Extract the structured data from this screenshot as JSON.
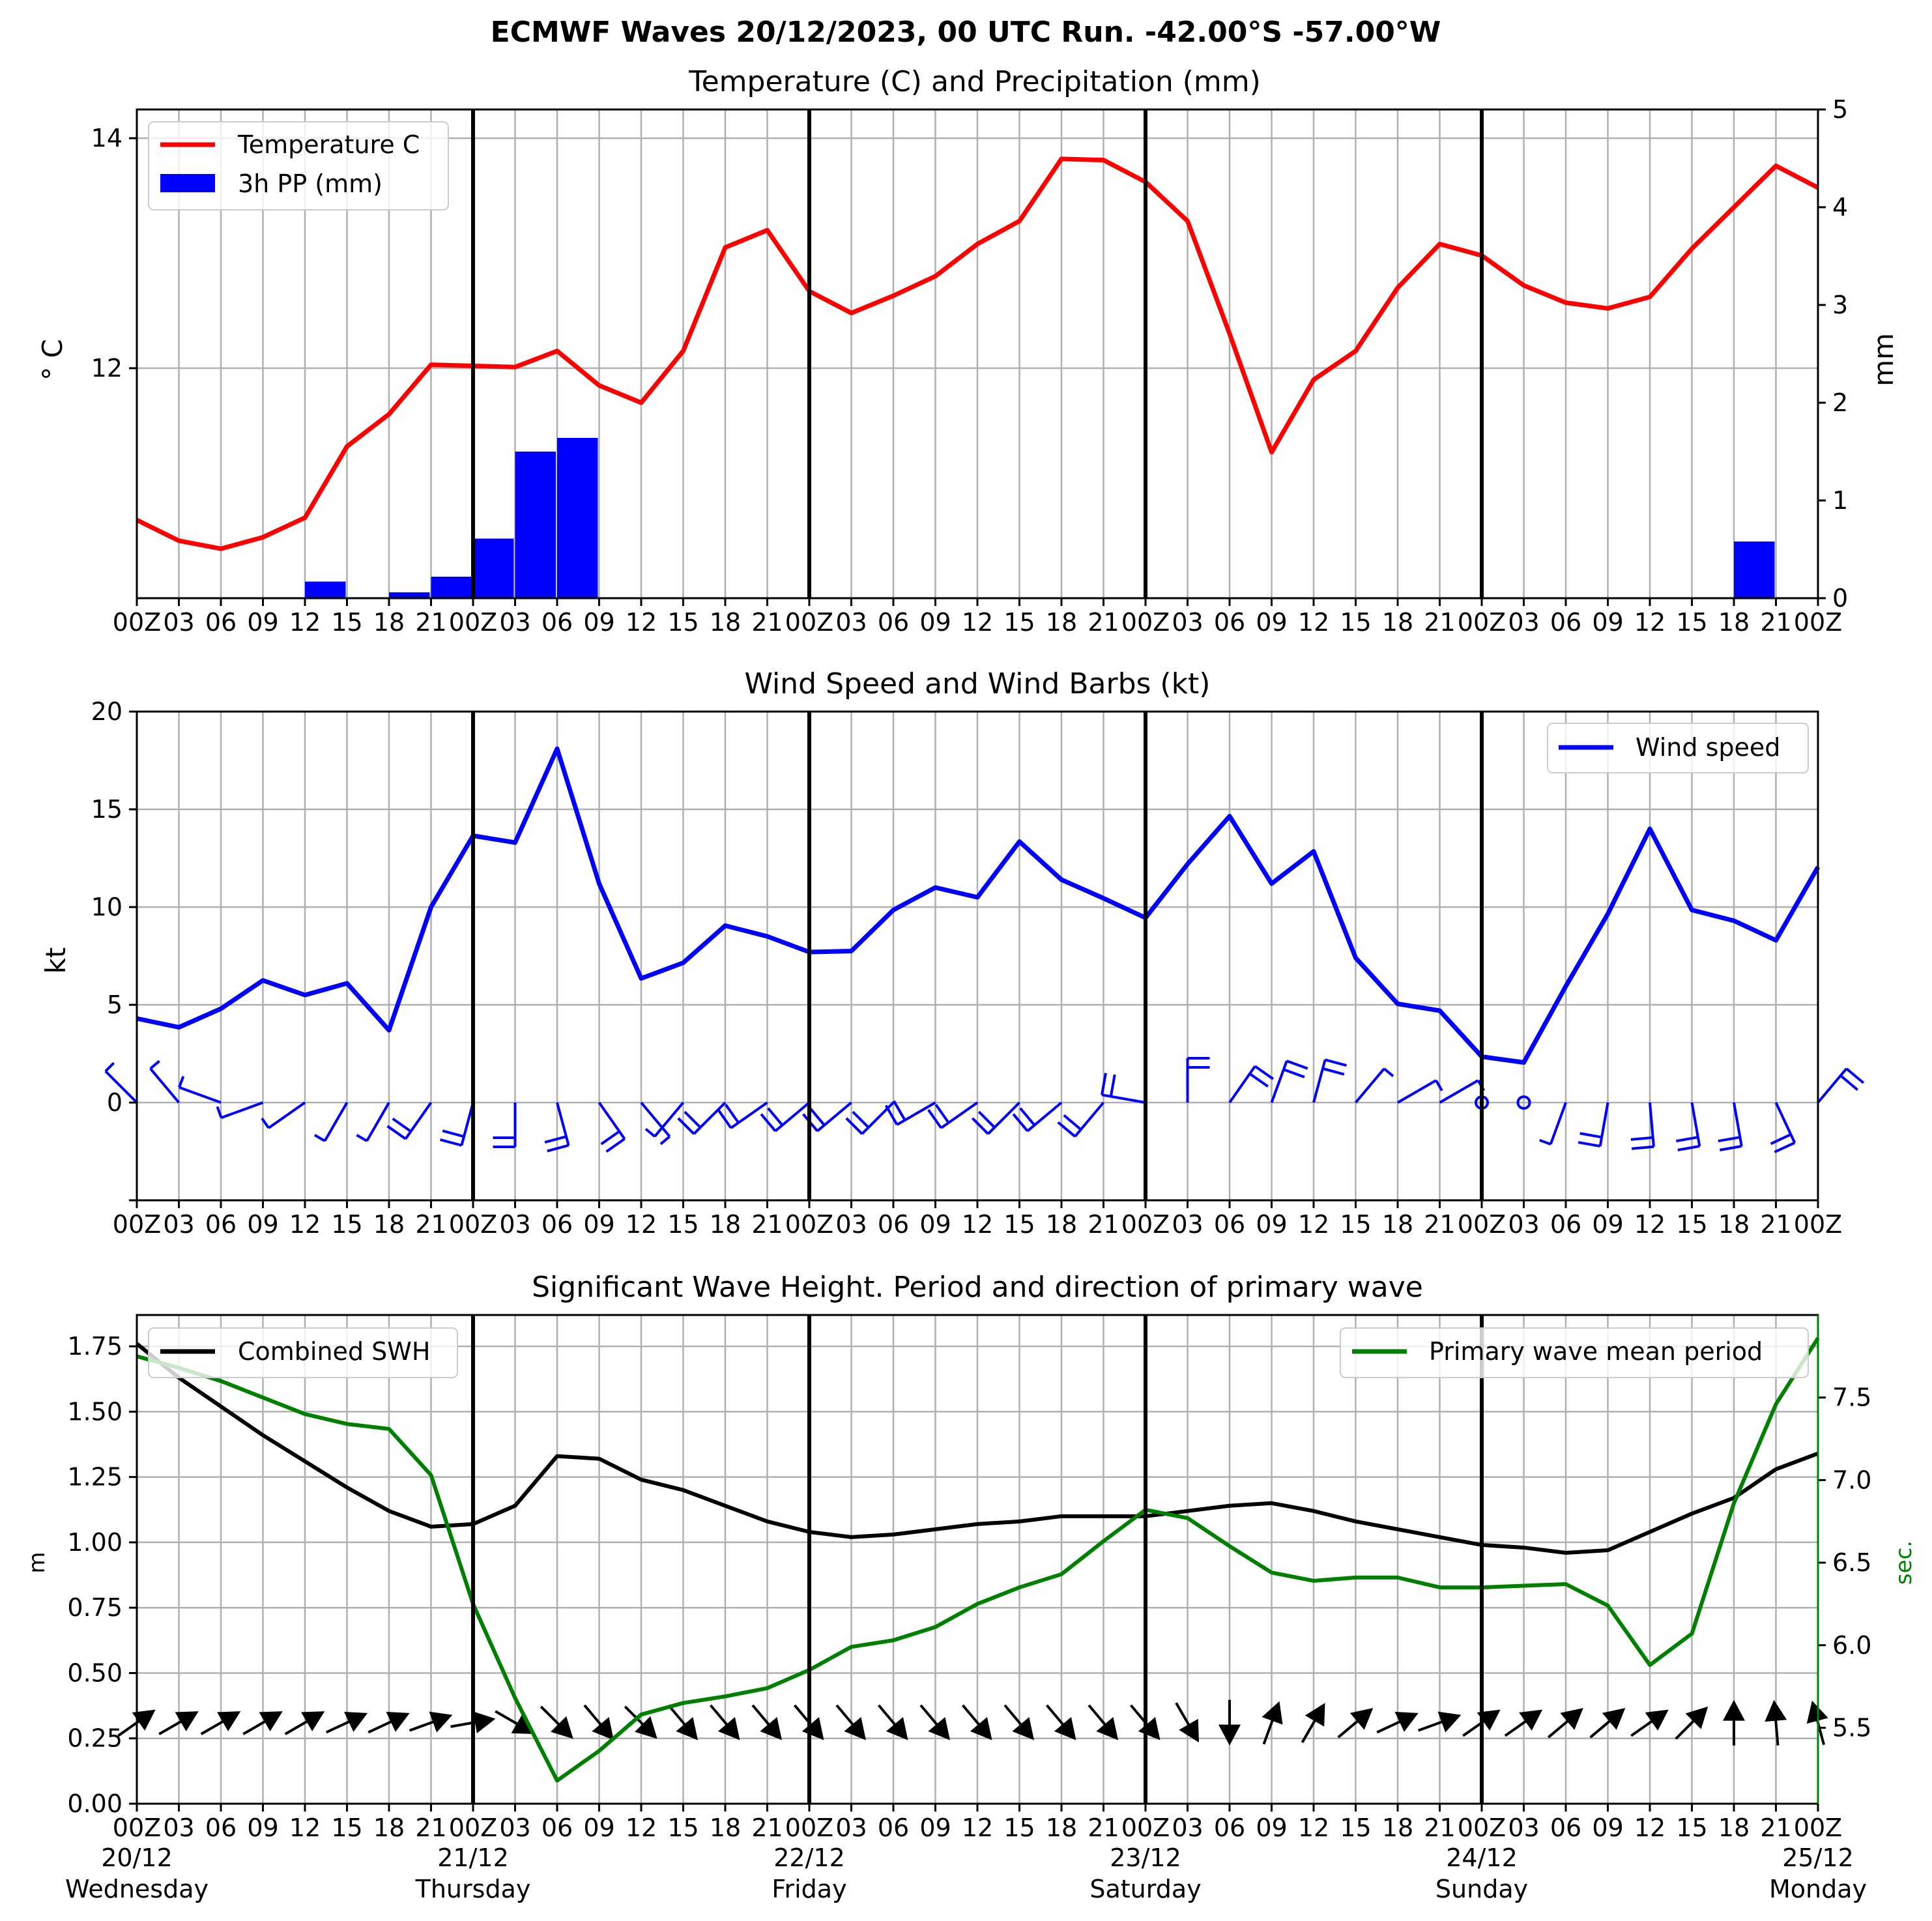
{
  "figure": {
    "title": "ECMWF Waves 20/12/2023, 00 UTC Run. -42.00°S -57.00°W"
  },
  "chart_data": [
    {
      "type": "line",
      "title": "Temperature (C) and Precipitation (mm)",
      "ylabel": "$^\\circ$C",
      "ylabel_display": "° C",
      "y2label": "mm",
      "x_hours": [
        0,
        3,
        6,
        9,
        12,
        15,
        18,
        21,
        24,
        27,
        30,
        33,
        36,
        39,
        42,
        45,
        48,
        51,
        54,
        57,
        60,
        63,
        66,
        69,
        72,
        75,
        78,
        81,
        84,
        87,
        90,
        93,
        96,
        99,
        102,
        105,
        108,
        111,
        114,
        117,
        120
      ],
      "x_tick_labels": [
        "00Z",
        "03",
        "06",
        "09",
        "12",
        "15",
        "18",
        "21",
        "00Z",
        "03",
        "06",
        "09",
        "12",
        "15",
        "18",
        "21",
        "00Z",
        "03",
        "06",
        "09",
        "12",
        "15",
        "18",
        "21",
        "00Z",
        "03",
        "06",
        "09",
        "12",
        "15",
        "18",
        "21",
        "00Z",
        "03",
        "06",
        "09",
        "12",
        "15",
        "18",
        "21",
        "00Z"
      ],
      "ylim": [
        10.0,
        14.25
      ],
      "yticks": [
        12,
        14
      ],
      "y2lim": [
        0,
        5
      ],
      "y2ticks": [
        0,
        1,
        2,
        3,
        4,
        5
      ],
      "series": [
        {
          "name": "Temperature C",
          "kind": "line",
          "color": "#ff0000",
          "axis": "left",
          "values": [
            10.68,
            10.5,
            10.43,
            10.53,
            10.7,
            11.32,
            11.6,
            12.03,
            12.02,
            12.01,
            12.15,
            11.85,
            11.7,
            12.15,
            13.05,
            13.2,
            12.67,
            12.48,
            12.63,
            12.8,
            13.08,
            13.28,
            13.82,
            13.81,
            13.62,
            13.28,
            12.3,
            11.27,
            11.9,
            12.15,
            12.7,
            13.08,
            12.98,
            12.72,
            12.57,
            12.52,
            12.62,
            13.04,
            13.4,
            13.76,
            13.57
          ]
        },
        {
          "name": "3h PP (mm)",
          "kind": "bar",
          "color": "#0000ff",
          "axis": "right",
          "values": [
            0,
            0,
            0,
            0,
            0,
            0.17,
            0,
            0.06,
            0.22,
            0.61,
            1.5,
            1.64,
            0,
            0,
            0,
            0,
            0,
            0,
            0,
            0,
            0,
            0,
            0,
            0,
            0,
            0,
            0,
            0,
            0,
            0,
            0,
            0,
            0,
            0,
            0,
            0,
            0,
            0,
            0,
            0.58,
            0
          ]
        }
      ],
      "legend": "top-left",
      "grid": true
    },
    {
      "type": "line",
      "title": "Wind Speed and Wind Barbs (kt)",
      "ylabel": "kt",
      "x_hours": [
        0,
        3,
        6,
        9,
        12,
        15,
        18,
        21,
        24,
        27,
        30,
        33,
        36,
        39,
        42,
        45,
        48,
        51,
        54,
        57,
        60,
        63,
        66,
        69,
        72,
        75,
        78,
        81,
        84,
        87,
        90,
        93,
        96,
        99,
        102,
        105,
        108,
        111,
        114,
        117,
        120
      ],
      "x_tick_labels": [
        "00Z",
        "03",
        "06",
        "09",
        "12",
        "15",
        "18",
        "21",
        "00Z",
        "03",
        "06",
        "09",
        "12",
        "15",
        "18",
        "21",
        "00Z",
        "03",
        "06",
        "09",
        "12",
        "15",
        "18",
        "21",
        "00Z",
        "03",
        "06",
        "09",
        "12",
        "15",
        "18",
        "21",
        "00Z",
        "03",
        "06",
        "09",
        "12",
        "15",
        "18",
        "21",
        "00Z"
      ],
      "ylim": [
        -5,
        20
      ],
      "yticks": [
        0,
        5,
        10,
        15,
        20
      ],
      "series": [
        {
          "name": "Wind speed",
          "color": "#0000ff",
          "values": [
            4.3,
            3.85,
            4.8,
            6.25,
            5.5,
            6.1,
            3.7,
            10.0,
            13.65,
            13.3,
            18.1,
            11.2,
            6.35,
            7.15,
            9.05,
            8.5,
            7.7,
            7.75,
            9.85,
            11.0,
            10.5,
            13.35,
            11.4,
            10.45,
            9.45,
            12.2,
            14.65,
            11.2,
            12.85,
            7.4,
            5.05,
            4.7,
            2.35,
            2.05,
            5.95,
            9.65,
            14.0,
            9.85,
            9.3,
            8.3,
            12.05
          ]
        }
      ],
      "barbs_dir_deg": [
        315,
        320,
        290,
        250,
        235,
        210,
        210,
        215,
        195,
        180,
        165,
        145,
        140,
        220,
        225,
        235,
        230,
        230,
        225,
        240,
        235,
        225,
        230,
        220,
        280,
        0,
        35,
        20,
        15,
        40,
        60,
        60,
        0,
        0,
        200,
        190,
        175,
        170,
        170,
        155,
        40
      ],
      "legend": "top-right",
      "grid": true
    },
    {
      "type": "line",
      "title": "Significant Wave Height. Period and direction of primary wave",
      "ylabel": "m",
      "y2label": "sec.",
      "x_hours": [
        0,
        3,
        6,
        9,
        12,
        15,
        18,
        21,
        24,
        27,
        30,
        33,
        36,
        39,
        42,
        45,
        48,
        51,
        54,
        57,
        60,
        63,
        66,
        69,
        72,
        75,
        78,
        81,
        84,
        87,
        90,
        93,
        96,
        99,
        102,
        105,
        108,
        111,
        114,
        117,
        120
      ],
      "x_tick_labels": [
        "00Z",
        "03",
        "06",
        "09",
        "12",
        "15",
        "18",
        "21",
        "00Z",
        "03",
        "06",
        "09",
        "12",
        "15",
        "18",
        "21",
        "00Z",
        "03",
        "06",
        "09",
        "12",
        "15",
        "18",
        "21",
        "00Z",
        "03",
        "06",
        "09",
        "12",
        "15",
        "18",
        "21",
        "00Z",
        "03",
        "06",
        "09",
        "12",
        "15",
        "18",
        "21",
        "00Z"
      ],
      "date_labels": [
        "20/12",
        "21/12",
        "22/12",
        "23/12",
        "24/12",
        "25/12"
      ],
      "day_labels": [
        "Wednesday",
        "Thursday",
        "Friday",
        "Saturday",
        "Sunday",
        "Monday"
      ],
      "ylim": [
        0,
        1.87
      ],
      "yticks": [
        0.0,
        0.25,
        0.5,
        0.75,
        1.0,
        1.25,
        1.5,
        1.75
      ],
      "ytick_labels": [
        "0.00",
        "0.25",
        "0.50",
        "0.75",
        "1.00",
        "1.25",
        "1.50",
        "1.75"
      ],
      "y2lim": [
        5.04,
        8.0
      ],
      "y2ticks": [
        5.5,
        6.0,
        6.5,
        7.0,
        7.5
      ],
      "y2tick_labels": [
        "5.5",
        "6.0",
        "6.5",
        "7.0",
        "7.5"
      ],
      "series": [
        {
          "name": "Combined SWH",
          "color": "#000000",
          "axis": "left",
          "values": [
            1.76,
            1.63,
            1.52,
            1.41,
            1.31,
            1.21,
            1.12,
            1.06,
            1.07,
            1.14,
            1.33,
            1.32,
            1.24,
            1.2,
            1.14,
            1.08,
            1.04,
            1.02,
            1.03,
            1.05,
            1.07,
            1.08,
            1.1,
            1.1,
            1.1,
            1.12,
            1.14,
            1.15,
            1.12,
            1.08,
            1.05,
            1.02,
            0.99,
            0.98,
            0.96,
            0.97,
            1.04,
            1.11,
            1.17,
            1.28,
            1.34
          ]
        },
        {
          "name": "Primary wave mean period",
          "color": "#008000",
          "axis": "right",
          "values": [
            7.75,
            7.68,
            7.6,
            7.5,
            7.4,
            7.34,
            7.31,
            7.03,
            6.25,
            5.68,
            5.18,
            5.36,
            5.58,
            5.65,
            5.69,
            5.74,
            5.85,
            5.99,
            6.03,
            6.11,
            6.25,
            6.35,
            6.43,
            6.63,
            6.82,
            6.77,
            6.6,
            6.44,
            6.39,
            6.41,
            6.41,
            6.35,
            6.35,
            6.36,
            6.37,
            6.24,
            5.88,
            6.07,
            6.86,
            7.46,
            7.86
          ]
        }
      ],
      "wave_dir_deg": [
        125,
        120,
        120,
        120,
        120,
        115,
        115,
        110,
        100,
        60,
        45,
        40,
        45,
        40,
        40,
        40,
        40,
        40,
        40,
        40,
        40,
        40,
        40,
        40,
        40,
        30,
        0,
        160,
        150,
        130,
        115,
        110,
        125,
        125,
        130,
        130,
        125,
        135,
        180,
        185,
        195
      ],
      "legend_left": "top-left",
      "legend_right": "top-right",
      "grid": true
    }
  ]
}
